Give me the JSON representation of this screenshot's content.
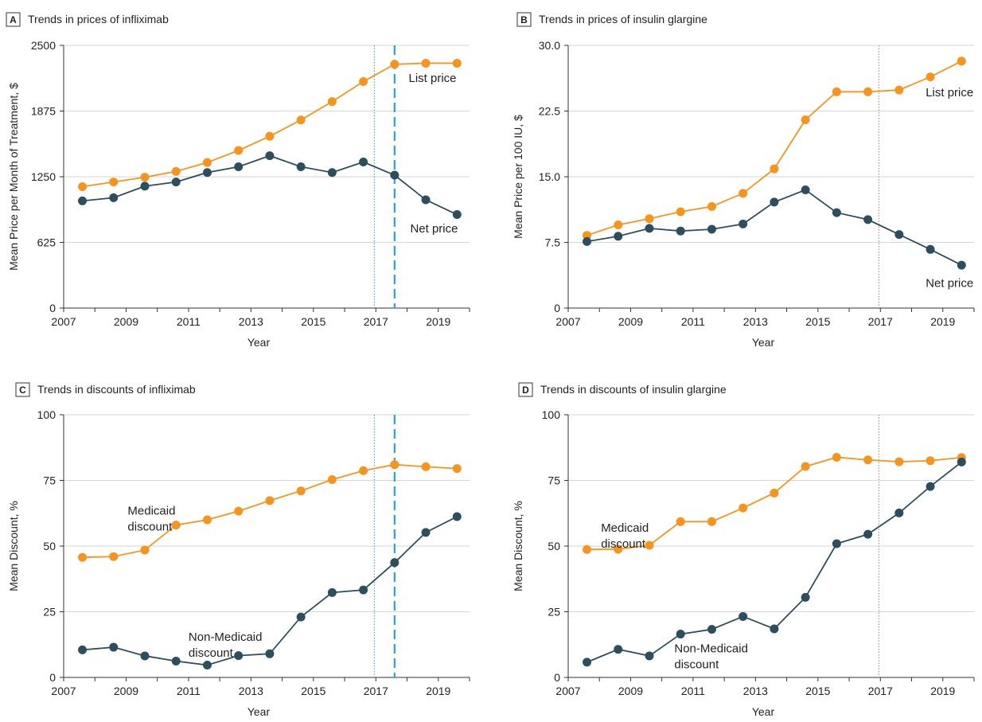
{
  "colors": {
    "list": "#f7941d",
    "net": "#2d4e5c",
    "grid": "#d6d6d6",
    "axis": "#333333",
    "dotted": "#1e9bd7",
    "dashed": "#1fa8e0",
    "dotted_gray": "#888888"
  },
  "chart_data": [
    {
      "letter": "A",
      "title": "Trends in prices of infliximab",
      "type": "line",
      "xlabel": "Year",
      "ylabel": "Mean Price per Month of Treatment, $",
      "xlim": [
        2007,
        2020
      ],
      "ylim": [
        0,
        2500
      ],
      "xticks": [
        "2007",
        "2009",
        "2011",
        "2013",
        "2015",
        "2017",
        "2019"
      ],
      "yticks": [
        "0",
        "625",
        "1250",
        "1875",
        "2500"
      ],
      "grid": true,
      "vlines": [
        {
          "x": 2016.95,
          "style": "dotted",
          "color": "#1e9bd7"
        },
        {
          "x": 2017.6,
          "style": "dashed",
          "color": "#1fa8e0"
        }
      ],
      "x": [
        2007.6,
        2008.6,
        2009.6,
        2010.6,
        2011.6,
        2012.6,
        2013.6,
        2014.6,
        2015.6,
        2016.6,
        2017.6,
        2018.6,
        2019.6
      ],
      "series": [
        {
          "name": "List price",
          "color": "#f7941d",
          "values": [
            1155,
            1200,
            1245,
            1300,
            1385,
            1500,
            1635,
            1790,
            1965,
            2155,
            2320,
            2330,
            2330
          ]
        },
        {
          "name": "Net price",
          "color": "#2d4e5c",
          "values": [
            1020,
            1050,
            1160,
            1200,
            1290,
            1345,
            1450,
            1345,
            1290,
            1390,
            1265,
            1030,
            890
          ]
        }
      ],
      "annotations": [
        {
          "text": [
            "List price"
          ],
          "x": 2018.05,
          "y": 2150,
          "color": "#222"
        },
        {
          "text": [
            "Net price"
          ],
          "x": 2018.1,
          "y": 720,
          "color": "#222"
        }
      ]
    },
    {
      "letter": "B",
      "title": "Trends in prices of insulin glargine",
      "type": "line",
      "xlabel": "Year",
      "ylabel": "Mean Price per 100 IU, $",
      "xlim": [
        2007,
        2020
      ],
      "ylim": [
        0,
        30
      ],
      "xticks": [
        "2007",
        "2009",
        "2011",
        "2013",
        "2015",
        "2017",
        "2019"
      ],
      "yticks": [
        "0",
        "7.5",
        "15.0",
        "22.5",
        "30.0"
      ],
      "grid": true,
      "vlines": [
        {
          "x": 2016.95,
          "style": "dotted",
          "color": "#888888"
        }
      ],
      "x": [
        2007.6,
        2008.6,
        2009.6,
        2010.6,
        2011.6,
        2012.6,
        2013.6,
        2014.6,
        2015.6,
        2016.6,
        2017.6,
        2018.6,
        2019.6
      ],
      "series": [
        {
          "name": "List price",
          "color": "#f7941d",
          "values": [
            8.3,
            9.5,
            10.2,
            11.0,
            11.6,
            13.1,
            15.9,
            21.5,
            24.7,
            24.7,
            24.9,
            26.4,
            28.2
          ]
        },
        {
          "name": "Net price",
          "color": "#2d4e5c",
          "values": [
            7.6,
            8.2,
            9.1,
            8.8,
            9.0,
            9.6,
            12.1,
            13.5,
            10.9,
            10.1,
            8.4,
            6.7,
            4.9
          ]
        }
      ],
      "annotations": [
        {
          "text": [
            "List price"
          ],
          "x": 2018.45,
          "y": 24.2,
          "color": "#222"
        },
        {
          "text": [
            "Net price"
          ],
          "x": 2018.45,
          "y": 2.4,
          "color": "#222"
        }
      ]
    },
    {
      "letter": "C",
      "title": "Trends in discounts of infliximab",
      "type": "line",
      "xlabel": "Year",
      "ylabel": "Mean Discount, %",
      "xlim": [
        2007,
        2020
      ],
      "ylim": [
        0,
        100
      ],
      "xticks": [
        "2007",
        "2009",
        "2011",
        "2013",
        "2015",
        "2017",
        "2019"
      ],
      "yticks": [
        "0",
        "25",
        "50",
        "75",
        "100"
      ],
      "grid": true,
      "vlines": [
        {
          "x": 2016.95,
          "style": "dotted",
          "color": "#1e9bd7"
        },
        {
          "x": 2017.6,
          "style": "dashed",
          "color": "#1fa8e0"
        }
      ],
      "x": [
        2007.6,
        2008.6,
        2009.6,
        2010.6,
        2011.6,
        2012.6,
        2013.6,
        2014.6,
        2015.6,
        2016.6,
        2017.6,
        2018.6,
        2019.6
      ],
      "series": [
        {
          "name": "Medicaid discount",
          "color": "#f7941d",
          "values": [
            45.7,
            46.0,
            48.5,
            58.0,
            60.0,
            63.3,
            67.3,
            71.0,
            75.3,
            78.7,
            81.0,
            80.2,
            79.5
          ]
        },
        {
          "name": "Non-Medicaid discount",
          "color": "#2d4e5c",
          "values": [
            10.5,
            11.5,
            8.2,
            6.2,
            4.7,
            8.3,
            9.0,
            23.0,
            32.3,
            33.3,
            43.7,
            55.2,
            61.2
          ]
        }
      ],
      "annotations": [
        {
          "text": [
            "Medicaid",
            "discount"
          ],
          "x": 2009.05,
          "y": 62.0,
          "color": "#222"
        },
        {
          "text": [
            "Non-Medicaid",
            "discount"
          ],
          "x": 2011.0,
          "y": 14.0,
          "color": "#222"
        }
      ]
    },
    {
      "letter": "D",
      "title": "Trends in discounts of insulin glargine",
      "type": "line",
      "xlabel": "Year",
      "ylabel": "Mean Discount, %",
      "xlim": [
        2007,
        2020
      ],
      "ylim": [
        0,
        100
      ],
      "xticks": [
        "2007",
        "2009",
        "2011",
        "2013",
        "2015",
        "2017",
        "2019"
      ],
      "yticks": [
        "0",
        "25",
        "50",
        "75",
        "100"
      ],
      "grid": true,
      "vlines": [
        {
          "x": 2016.95,
          "style": "dotted",
          "color": "#888888"
        }
      ],
      "x": [
        2007.6,
        2008.6,
        2009.6,
        2010.6,
        2011.6,
        2012.6,
        2013.6,
        2014.6,
        2015.6,
        2016.6,
        2017.6,
        2018.6,
        2019.6
      ],
      "series": [
        {
          "name": "Medicaid discount",
          "color": "#f7941d",
          "values": [
            48.7,
            48.8,
            50.3,
            59.3,
            59.3,
            64.5,
            70.2,
            80.3,
            83.8,
            82.8,
            82.1,
            82.5,
            83.7
          ]
        },
        {
          "name": "Non-Medicaid discount",
          "color": "#2d4e5c",
          "values": [
            5.8,
            10.7,
            8.2,
            16.5,
            18.3,
            23.2,
            18.5,
            30.5,
            50.9,
            54.5,
            62.6,
            72.7,
            82.0
          ]
        }
      ],
      "annotations": [
        {
          "text": [
            "Medicaid",
            "discount"
          ],
          "x": 2008.05,
          "y": 55.5,
          "color": "#222"
        },
        {
          "text": [
            "Non-Medicaid",
            "discount"
          ],
          "x": 2010.4,
          "y": 9.5,
          "color": "#222"
        }
      ]
    }
  ]
}
